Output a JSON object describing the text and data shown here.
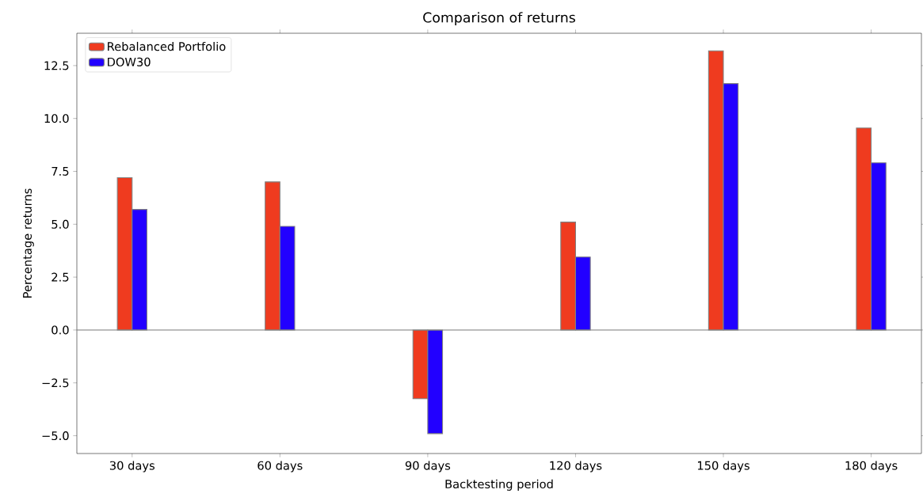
{
  "chart_data": {
    "type": "bar",
    "title": "Comparison of returns",
    "xlabel": "Backtesting period",
    "ylabel": "Percentage returns",
    "categories": [
      "30 days",
      "60 days",
      "90 days",
      "120 days",
      "150 days",
      "180 days"
    ],
    "series": [
      {
        "name": "Rebalanced Portfolio",
        "color": "#ef3b1f",
        "values": [
          7.2,
          7.0,
          -3.25,
          5.1,
          13.2,
          9.55
        ]
      },
      {
        "name": "DOW30",
        "color": "#2200ff",
        "values": [
          5.7,
          4.9,
          -4.9,
          3.45,
          11.65,
          7.9
        ]
      }
    ],
    "ylim": [
      -5.84,
      14.03
    ],
    "yticks": [
      {
        "value": -5,
        "label": "−5.0"
      },
      {
        "value": -2.5,
        "label": "−2.5"
      },
      {
        "value": 0,
        "label": "0.0"
      },
      {
        "value": 2.5,
        "label": "2.5"
      },
      {
        "value": 5,
        "label": "5.0"
      },
      {
        "value": 7.5,
        "label": "7.5"
      },
      {
        "value": 10,
        "label": "10.0"
      },
      {
        "value": 12.5,
        "label": "12.5"
      }
    ],
    "ref_lines": [
      {
        "axis": "y",
        "value": 0,
        "color": "#808080"
      }
    ],
    "legend": "top left",
    "grid": false
  }
}
